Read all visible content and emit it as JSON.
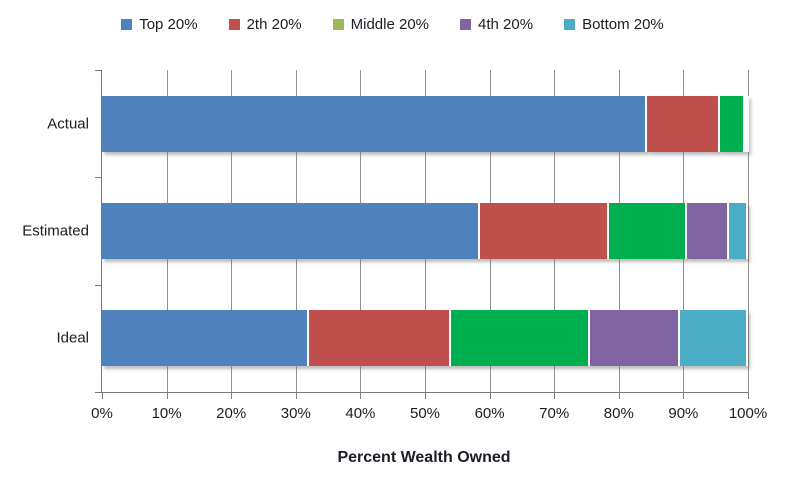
{
  "chart_data": {
    "type": "bar",
    "orientation": "horizontal",
    "stacked": true,
    "xlabel": "Percent Wealth Owned",
    "categories": [
      "Actual",
      "Estimated",
      "Ideal"
    ],
    "series": [
      {
        "name": "Top 20%",
        "color": "#4F81BD",
        "legend_color": "#4F81BD",
        "values": [
          84.4,
          58.5,
          32.0
        ]
      },
      {
        "name": "2th 20%",
        "color": "#C0504D",
        "legend_color": "#C0504D",
        "values": [
          11.2,
          20.0,
          22.0
        ]
      },
      {
        "name": "Middle 20%",
        "color": "#00B050",
        "legend_color": "#9BBB59",
        "values": [
          3.9,
          12.0,
          21.5
        ]
      },
      {
        "name": "4th 20%",
        "color": "#8064A2",
        "legend_color": "#8064A2",
        "values": [
          0.4,
          6.5,
          14.0
        ]
      },
      {
        "name": "Bottom 20%",
        "color": "#4BACC6",
        "legend_color": "#4BACC6",
        "values": [
          0.1,
          3.0,
          10.5
        ]
      }
    ],
    "x_ticks": [
      "0%",
      "10%",
      "20%",
      "30%",
      "40%",
      "50%",
      "60%",
      "70%",
      "80%",
      "90%",
      "100%"
    ],
    "xlim": [
      0,
      100
    ],
    "grid": true,
    "legend_position": "top"
  }
}
